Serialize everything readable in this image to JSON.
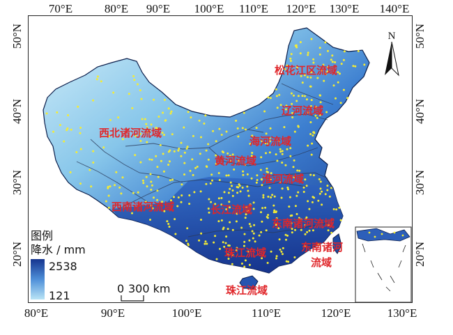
{
  "map": {
    "top_lon_labels": [
      "70°E",
      "80°E",
      "90°E",
      "100°E",
      "110°E",
      "120°E",
      "130°E",
      "140°E"
    ],
    "bottom_lon_labels": [
      "80°E",
      "90°E",
      "100°E",
      "110°E",
      "120°E",
      "130°E"
    ],
    "left_lat_labels": [
      "50°N",
      "40°N",
      "30°N",
      "20°N"
    ],
    "right_lat_labels": [
      "50°N",
      "40°N",
      "30°N",
      "20°N"
    ],
    "north_arrow": "N",
    "scale_bar": {
      "zero": "0",
      "length": "300 km"
    },
    "legend": {
      "title": "图例",
      "variable": "降水 / mm",
      "max": "2538",
      "min": "121",
      "color_high": "#15348f",
      "color_low": "#b9e4f5"
    },
    "regions": [
      "松花江区流域",
      "辽河流域",
      "西北诸河流域",
      "海河流域",
      "黄河流域",
      "淮河流域",
      "西南诸河流域",
      "长江流域",
      "东南诸河流域",
      "东南诸河\n流域",
      "珠江流域",
      "珠江流域"
    ],
    "station_color": "#f5ec33",
    "label_color": "#e0262a"
  }
}
